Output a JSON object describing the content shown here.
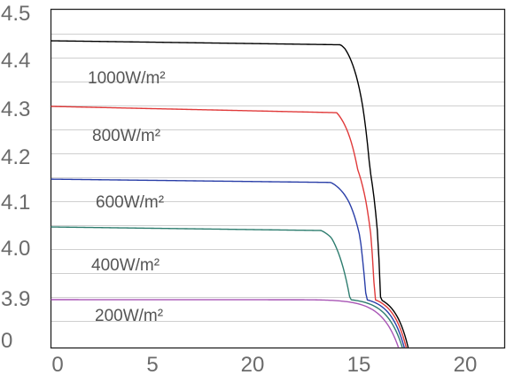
{
  "chart_data": {
    "type": "line",
    "title": "",
    "xlabel": "",
    "ylabel": "",
    "grid": true,
    "x_tick_labels": [
      "0",
      "5",
      "20",
      "15",
      "20"
    ],
    "y_tick_labels": [
      "4.5",
      "4.4",
      "4.3",
      "4.2",
      "4.1",
      "4.0",
      "3.9",
      "0"
    ],
    "x_range": [
      0,
      23.5
    ],
    "y_range": [
      0,
      4.5
    ],
    "series": [
      {
        "label": "1000W/m²",
        "color": "#000000",
        "isc": 4.42,
        "knee_x": 15.0,
        "voc": 18.5,
        "points": [
          [
            0,
            4.42
          ],
          [
            10,
            4.42
          ],
          [
            15,
            4.41
          ],
          [
            15.8,
            4.36
          ],
          [
            16.5,
            4.2
          ],
          [
            17.2,
            3.9
          ],
          [
            17.8,
            3.5
          ],
          [
            18.2,
            3.1
          ],
          [
            18.5,
            0.0
          ]
        ]
      },
      {
        "label": "800W/m²",
        "color": "#e03a3a",
        "isc": 4.3,
        "knee_x": 14.8,
        "voc": 18.4,
        "points": [
          [
            0,
            4.3
          ],
          [
            10,
            4.3
          ],
          [
            14.8,
            4.29
          ],
          [
            15.7,
            4.24
          ],
          [
            16.5,
            4.1
          ],
          [
            17.3,
            3.8
          ],
          [
            17.9,
            3.45
          ],
          [
            18.4,
            0.0
          ]
        ]
      },
      {
        "label": "600W/m²",
        "color": "#2a3fa8",
        "isc": 4.17,
        "knee_x": 14.5,
        "voc": 18.3,
        "points": [
          [
            0,
            4.17
          ],
          [
            10,
            4.17
          ],
          [
            14.5,
            4.16
          ],
          [
            15.5,
            4.12
          ],
          [
            16.5,
            4.0
          ],
          [
            17.3,
            3.75
          ],
          [
            17.9,
            3.45
          ],
          [
            18.3,
            0.0
          ]
        ]
      },
      {
        "label": "400W/m²",
        "color": "#2e7d6f",
        "isc": 4.03,
        "knee_x": 14.0,
        "voc": 18.2,
        "points": [
          [
            0,
            4.03
          ],
          [
            10,
            4.03
          ],
          [
            14.0,
            4.02
          ],
          [
            15.2,
            3.99
          ],
          [
            16.3,
            3.88
          ],
          [
            17.2,
            3.65
          ],
          [
            17.8,
            3.4
          ],
          [
            18.2,
            0.0
          ]
        ]
      },
      {
        "label": "200W/m²",
        "color": "#a855b5",
        "isc": 3.9,
        "knee_x": 13.5,
        "voc": 18.0,
        "points": [
          [
            0,
            3.9
          ],
          [
            10,
            3.9
          ],
          [
            13.5,
            3.89
          ],
          [
            15.0,
            3.86
          ],
          [
            16.2,
            3.78
          ],
          [
            17.1,
            3.6
          ],
          [
            17.7,
            3.4
          ],
          [
            18.0,
            0.0
          ]
        ]
      }
    ]
  }
}
